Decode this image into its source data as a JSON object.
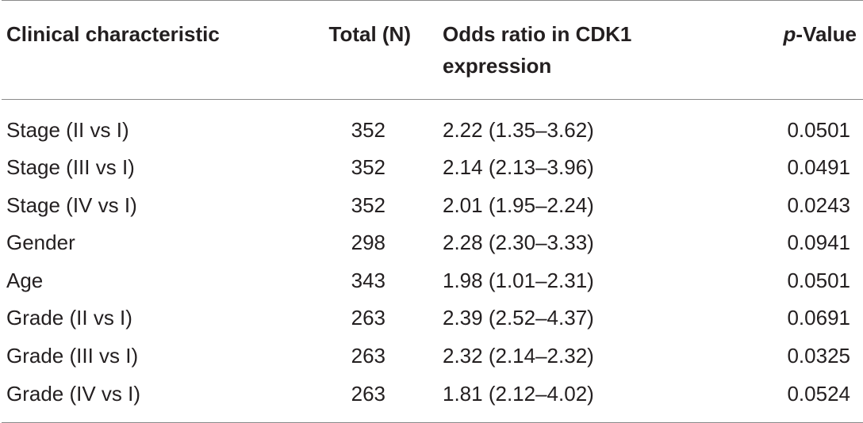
{
  "table": {
    "headers": {
      "characteristic": "Clinical characteristic",
      "total": "Total (N)",
      "odds_line1": "Odds ratio in CDK1",
      "odds_line2": "expression",
      "pvalue_prefix": "p",
      "pvalue_suffix": "-Value"
    },
    "rows": [
      {
        "characteristic": "Stage (II vs I)",
        "total": "352",
        "odds": "2.22 (1.35–3.62)",
        "pvalue": "0.0501"
      },
      {
        "characteristic": "Stage (III vs I)",
        "total": "352",
        "odds": "2.14 (2.13–3.96)",
        "pvalue": "0.0491"
      },
      {
        "characteristic": "Stage (IV vs I)",
        "total": "352",
        "odds": "2.01 (1.95–2.24)",
        "pvalue": "0.0243"
      },
      {
        "characteristic": "Gender",
        "total": "298",
        "odds": "2.28 (2.30–3.33)",
        "pvalue": "0.0941"
      },
      {
        "characteristic": "Age",
        "total": "343",
        "odds": "1.98 (1.01–2.31)",
        "pvalue": "0.0501"
      },
      {
        "characteristic": "Grade (II vs I)",
        "total": "263",
        "odds": "2.39 (2.52–4.37)",
        "pvalue": "0.0691"
      },
      {
        "characteristic": "Grade (III vs I)",
        "total": "263",
        "odds": "2.32 (2.14–2.32)",
        "pvalue": "0.0325"
      },
      {
        "characteristic": "Grade (IV vs I)",
        "total": "263",
        "odds": "1.81 (2.12–4.02)",
        "pvalue": "0.0524"
      }
    ]
  }
}
